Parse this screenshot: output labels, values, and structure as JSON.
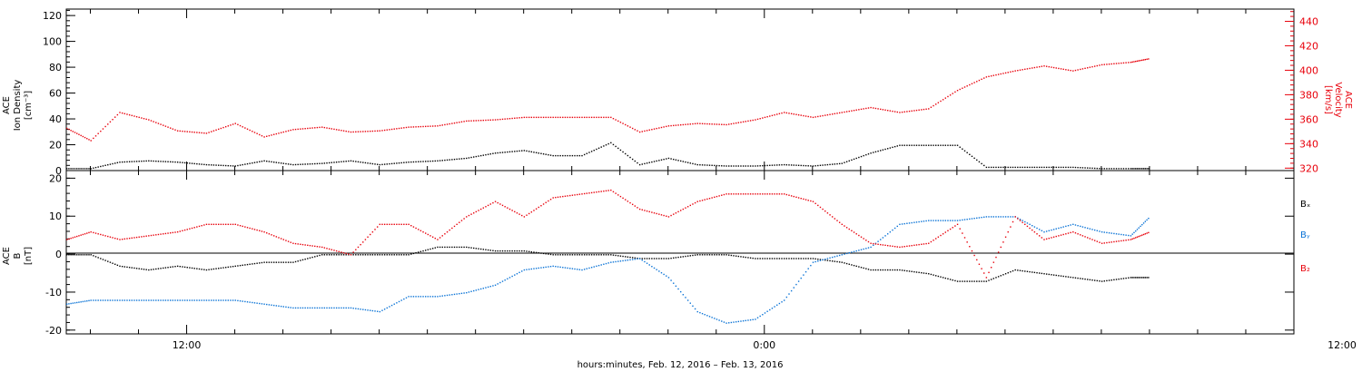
{
  "chart_data": [
    {
      "type": "scatter",
      "panel": "top",
      "ylabel_left": [
        "ACE",
        "Ion Density",
        "[cm⁻³]"
      ],
      "ylabel_right": [
        "ACE",
        "Velocity",
        "[km/s]"
      ],
      "ylim_left": [
        0,
        125
      ],
      "ylim_right": [
        318,
        450
      ],
      "yticks_left": [
        "0",
        "20",
        "40",
        "60",
        "80",
        "100",
        "120"
      ],
      "yticks_right": [
        "320",
        "340",
        "360",
        "380",
        "400",
        "420",
        "440"
      ],
      "x_hours_range": [
        9.5,
        35.0
      ],
      "series": [
        {
          "axis": "left",
          "color": "#000000",
          "x": [
            9.5,
            10.0,
            10.6,
            11.2,
            11.8,
            12.4,
            13.0,
            13.6,
            14.2,
            14.8,
            15.4,
            16.0,
            16.6,
            17.2,
            17.8,
            18.4,
            19.0,
            19.6,
            20.2,
            20.8,
            21.4,
            22.0,
            22.6,
            23.2,
            23.8,
            24.4,
            25.0,
            25.6,
            26.2,
            26.8,
            27.4,
            28.0,
            28.6,
            29.2,
            29.8,
            30.4,
            31.0,
            31.6,
            32.0
          ],
          "y": [
            2,
            2,
            7,
            8,
            7,
            5,
            4,
            8,
            5,
            6,
            8,
            5,
            7,
            8,
            10,
            14,
            16,
            12,
            12,
            22,
            5,
            10,
            5,
            4,
            4,
            5,
            4,
            6,
            14,
            20,
            20,
            20,
            3,
            3,
            3,
            3,
            2,
            2,
            2
          ]
        },
        {
          "axis": "right",
          "color": "#e8000b",
          "x": [
            9.5,
            10.0,
            10.6,
            11.2,
            11.8,
            12.4,
            13.0,
            13.6,
            14.2,
            14.8,
            15.4,
            16.0,
            16.6,
            17.2,
            17.8,
            18.4,
            19.0,
            19.6,
            20.2,
            20.8,
            21.4,
            22.0,
            22.6,
            23.2,
            23.8,
            24.4,
            25.0,
            25.6,
            26.2,
            26.8,
            27.4,
            28.0,
            28.6,
            29.2,
            29.8,
            30.4,
            31.0,
            31.6,
            32.0
          ],
          "y": [
            353,
            343,
            366,
            360,
            351,
            349,
            357,
            346,
            352,
            354,
            350,
            351,
            354,
            355,
            359,
            360,
            362,
            362,
            362,
            362,
            350,
            355,
            357,
            356,
            360,
            366,
            362,
            366,
            370,
            366,
            369,
            384,
            395,
            400,
            404,
            400,
            405,
            407,
            410
          ]
        }
      ]
    },
    {
      "type": "scatter",
      "panel": "bottom",
      "ylabel_left": [
        "ACE",
        "B",
        "[nT]"
      ],
      "ylim": [
        -21,
        22
      ],
      "yticks": [
        "-20",
        "-10",
        "0",
        "10",
        "20"
      ],
      "x_hours_range": [
        9.5,
        35.0
      ],
      "legend": [
        "Bₓ",
        "Bᵧ",
        "B₂"
      ],
      "series": [
        {
          "name": "Bₓ",
          "color": "#000000",
          "x": [
            9.5,
            10.0,
            10.6,
            11.2,
            11.8,
            12.4,
            13.0,
            13.6,
            14.2,
            14.8,
            15.4,
            16.0,
            16.6,
            17.2,
            17.8,
            18.4,
            19.0,
            19.6,
            20.2,
            20.8,
            21.4,
            22.0,
            22.6,
            23.2,
            23.8,
            24.4,
            25.0,
            25.6,
            26.2,
            26.8,
            27.4,
            28.0,
            28.6,
            29.2,
            29.8,
            30.4,
            31.0,
            31.6,
            32.0
          ],
          "y": [
            0,
            0,
            -3,
            -4,
            -3,
            -4,
            -3,
            -2,
            -2,
            0,
            0,
            0,
            0,
            2,
            2,
            1,
            1,
            0,
            0,
            0,
            -1,
            -1,
            0,
            0,
            -1,
            -1,
            -1,
            -2,
            -4,
            -4,
            -5,
            -7,
            -7,
            -4,
            -5,
            -6,
            -7,
            -6,
            -6
          ]
        },
        {
          "name": "Bᵧ",
          "color": "#0a73d6",
          "x": [
            9.5,
            10.0,
            10.6,
            11.2,
            11.8,
            12.4,
            13.0,
            13.6,
            14.2,
            14.8,
            15.4,
            16.0,
            16.6,
            17.2,
            17.8,
            18.4,
            19.0,
            19.6,
            20.2,
            20.8,
            21.4,
            22.0,
            22.6,
            23.2,
            23.8,
            24.4,
            25.0,
            25.6,
            26.2,
            26.8,
            27.4,
            28.0,
            28.6,
            29.2,
            29.8,
            30.4,
            31.0,
            31.6,
            32.0
          ],
          "y": [
            -13,
            -12,
            -12,
            -12,
            -12,
            -12,
            -12,
            -13,
            -14,
            -14,
            -14,
            -15,
            -11,
            -11,
            -10,
            -8,
            -4,
            -3,
            -4,
            -2,
            -1,
            -6,
            -15,
            -18,
            -17,
            -12,
            -2,
            0,
            2,
            8,
            9,
            9,
            10,
            10,
            6,
            8,
            6,
            5,
            10
          ]
        },
        {
          "name": "B₂",
          "color": "#e8000b",
          "x": [
            9.5,
            10.0,
            10.6,
            11.2,
            11.8,
            12.4,
            13.0,
            13.6,
            14.2,
            14.8,
            15.4,
            16.0,
            16.6,
            17.2,
            17.8,
            18.4,
            19.0,
            19.6,
            20.2,
            20.8,
            21.4,
            22.0,
            22.6,
            23.2,
            23.8,
            24.4,
            25.0,
            25.6,
            26.2,
            26.8,
            27.4,
            28.0,
            28.6,
            29.2,
            29.8,
            30.4,
            31.0,
            31.6,
            32.0
          ],
          "y": [
            4,
            6,
            4,
            5,
            6,
            8,
            8,
            6,
            3,
            2,
            0,
            8,
            8,
            4,
            10,
            14,
            10,
            15,
            16,
            17,
            12,
            10,
            14,
            16,
            16,
            16,
            14,
            8,
            3,
            2,
            3,
            8,
            -6,
            10,
            4,
            6,
            3,
            4,
            6
          ]
        }
      ]
    }
  ],
  "x_axis": {
    "tick_labels": [
      "12:00",
      "0:00",
      "12:00"
    ],
    "tick_hours": [
      12,
      24,
      36
    ],
    "xlabel": "hours:minutes, Feb. 12, 2016 – Feb. 13, 2016"
  }
}
